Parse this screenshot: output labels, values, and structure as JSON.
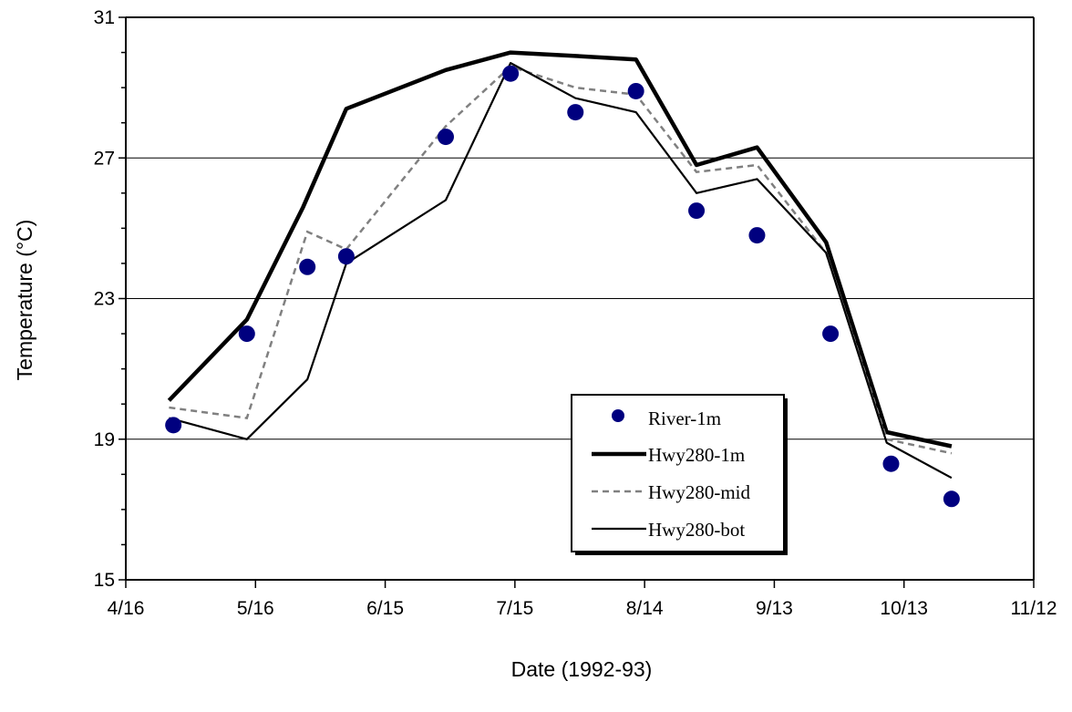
{
  "chart_data": {
    "type": "line",
    "xlabel": "Date (1992-93)",
    "ylabel": "Temperature (°C)",
    "x_ticks": [
      "4/16",
      "5/16",
      "6/15",
      "7/15",
      "8/14",
      "9/13",
      "10/13",
      "11/12"
    ],
    "x_tick_days": [
      0,
      30,
      60,
      90,
      120,
      150,
      180,
      210
    ],
    "y_ticks": [
      "15",
      "19",
      "23",
      "27",
      "31"
    ],
    "ylim": [
      15,
      31
    ],
    "xlim_days": [
      0,
      210
    ],
    "y_gridlines": [
      19,
      23,
      27
    ],
    "legend_position": "lower-right",
    "x_axis_note": "x values are days after 4/16 on the date axis",
    "series": [
      {
        "name": "River-1m",
        "style": "markers",
        "color": "#00007f",
        "x": [
          11,
          28,
          42,
          51,
          74,
          89,
          104,
          118,
          132,
          146,
          163,
          177,
          191
        ],
        "y": [
          19.4,
          22.0,
          23.9,
          24.2,
          27.6,
          29.4,
          28.3,
          28.9,
          25.5,
          24.8,
          22.0,
          18.3,
          17.3
        ]
      },
      {
        "name": "Hwy280-1m",
        "style": "thick",
        "color": "#000000",
        "x": [
          10,
          28,
          41,
          51,
          74,
          89,
          104,
          118,
          132,
          146,
          162,
          176,
          191
        ],
        "y": [
          20.1,
          22.4,
          25.6,
          28.4,
          29.5,
          30.0,
          29.9,
          29.8,
          26.8,
          27.3,
          24.6,
          19.2,
          18.8
        ]
      },
      {
        "name": "Hwy280-mid",
        "style": "dashed",
        "color": "#808080",
        "x": [
          10,
          28,
          42,
          51,
          74,
          89,
          104,
          118,
          132,
          146,
          162,
          176,
          191
        ],
        "y": [
          19.9,
          19.6,
          24.9,
          24.4,
          27.9,
          29.6,
          29.0,
          28.8,
          26.6,
          26.8,
          24.3,
          19.0,
          18.6
        ]
      },
      {
        "name": "Hwy280-bot",
        "style": "thin",
        "color": "#000000",
        "x": [
          10,
          28,
          42,
          51,
          74,
          89,
          104,
          118,
          132,
          146,
          162,
          176,
          191
        ],
        "y": [
          19.6,
          19.0,
          20.7,
          24.0,
          25.8,
          29.7,
          28.7,
          28.3,
          26.0,
          26.4,
          24.3,
          18.9,
          17.9
        ]
      }
    ]
  }
}
